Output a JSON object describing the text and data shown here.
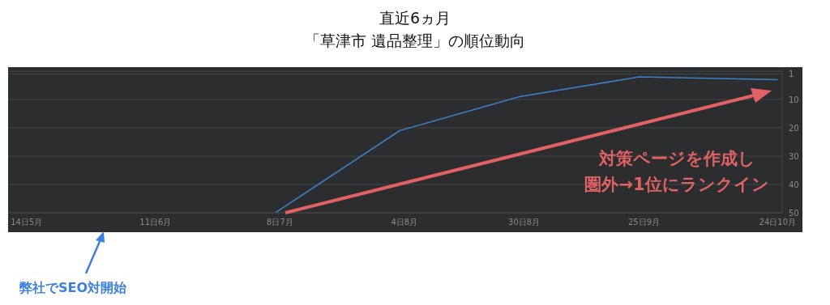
{
  "chart_data": {
    "type": "line",
    "title": "直近6ヵ月",
    "subtitle": "「草津市 遺品整理」の順位動向",
    "x": [
      "--07-07",
      "--08-03",
      "--08-29",
      "--09-24",
      "--10-24"
    ],
    "series": [
      {
        "color": "#3b7fc4",
        "values": [
          50,
          21,
          9,
          2,
          3
        ]
      }
    ],
    "xlim": [
      "--05-10",
      "--10-25"
    ],
    "xticks": [
      {
        "value": "--05-14",
        "label": "14日5月"
      },
      {
        "value": "--06-11",
        "label": "11日6月"
      },
      {
        "value": "--07-08",
        "label": "8日7月"
      },
      {
        "value": "--08-04",
        "label": "4日8月"
      },
      {
        "value": "--08-30",
        "label": "30日8月"
      },
      {
        "value": "--09-25",
        "label": "25日9月"
      },
      {
        "value": "--10-24",
        "label": "24日10月"
      }
    ],
    "ylim": [
      50,
      0
    ],
    "yticks": [
      1,
      10,
      20,
      30,
      40,
      50
    ],
    "grid": "y",
    "annotations": [
      "対策ページを作成し",
      "圏外→1位にランクイン",
      "弊社でSEO対開始"
    ]
  }
}
